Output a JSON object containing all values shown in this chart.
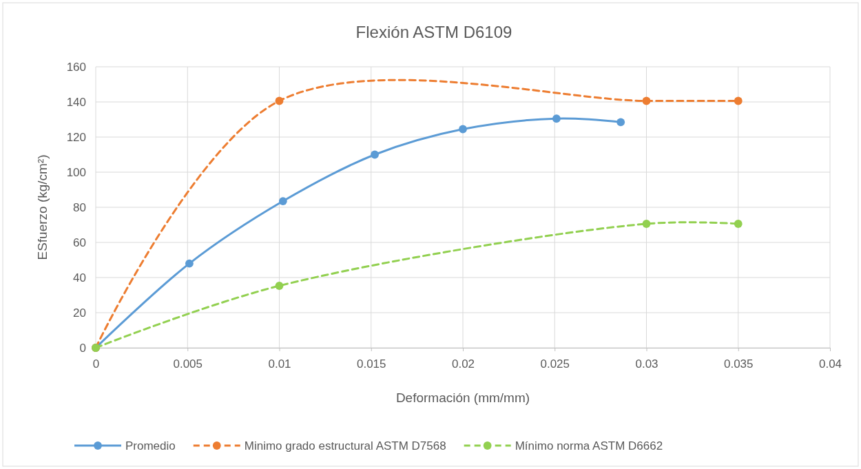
{
  "chart_data": {
    "type": "line",
    "title": "Flexión ASTM D6109",
    "xlabel": "Deformación (mm/mm)",
    "ylabel": "ESfuerzo (kg/cm²)",
    "xlim": [
      0,
      0.04
    ],
    "xticks": [
      0,
      0.005,
      0.01,
      0.015,
      0.02,
      0.025,
      0.03,
      0.035,
      0.04
    ],
    "ylim": [
      0,
      160
    ],
    "yticks": [
      0,
      20,
      40,
      60,
      80,
      100,
      120,
      140,
      160
    ],
    "grid": true,
    "legend": "bottom",
    "marker": "circle",
    "series": [
      {
        "name": "Promedio",
        "color": "#5b9bd5",
        "line_style": "solid",
        "x": [
          0,
          0.0051,
          0.0102,
          0.0152,
          0.02,
          0.0251,
          0.0286
        ],
        "values": [
          0,
          48,
          83.5,
          110,
          124.5,
          130.5,
          128.5
        ]
      },
      {
        "name": "Minimo grado estructural ASTM D7568",
        "color": "#ed7d31",
        "line_style": "dashed",
        "x": [
          0,
          0.01,
          0.03,
          0.035
        ],
        "values": [
          0,
          140.6,
          140.6,
          140.6
        ]
      },
      {
        "name": "Mínimo norma ASTM D6662",
        "color": "#92d050",
        "line_style": "dashed",
        "x": [
          0,
          0.01,
          0.03,
          0.035
        ],
        "values": [
          0,
          35.3,
          70.6,
          70.6
        ]
      }
    ]
  }
}
